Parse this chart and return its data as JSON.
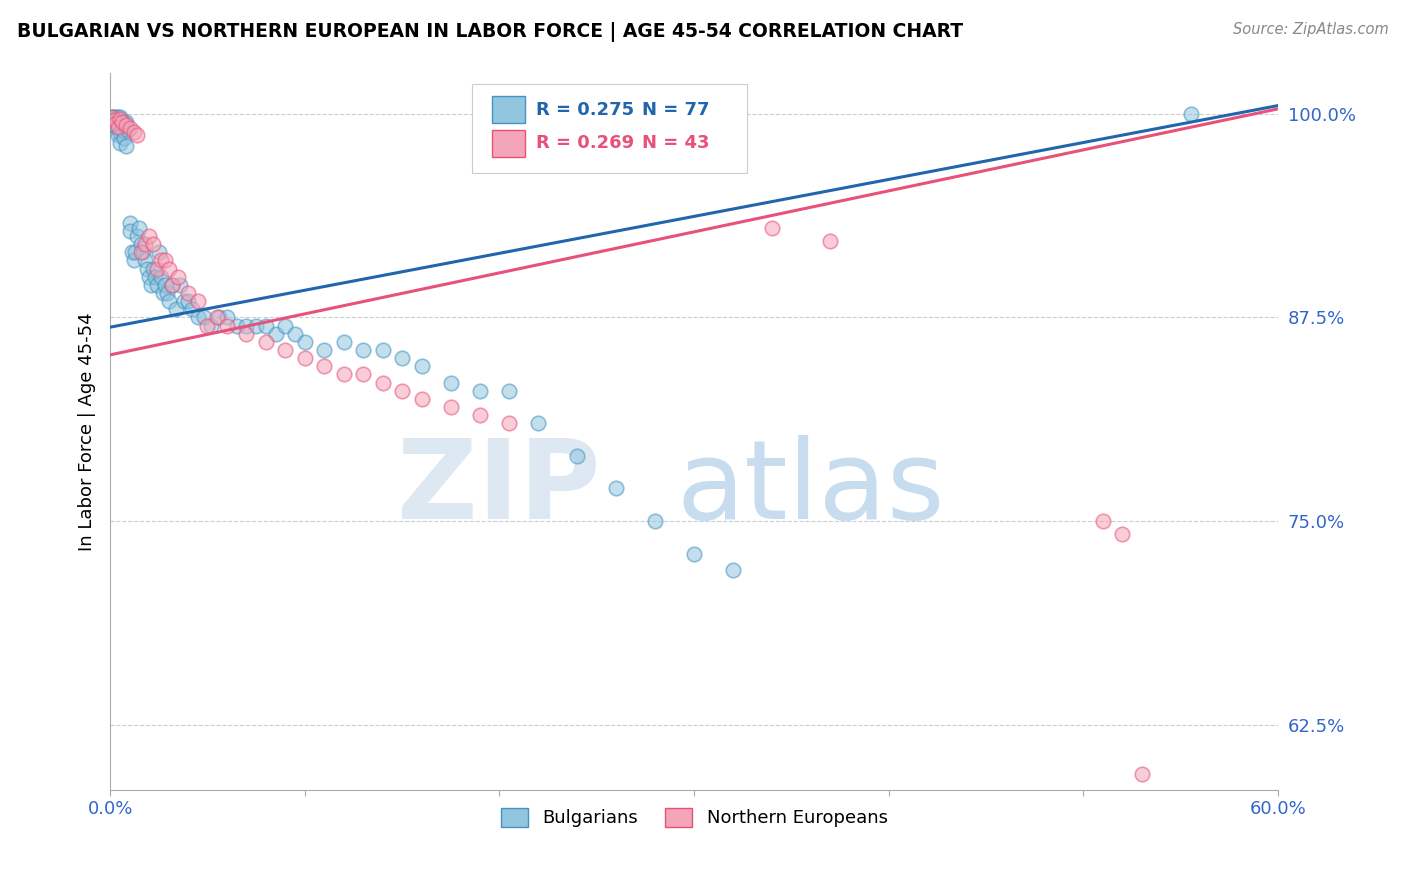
{
  "title": "BULGARIAN VS NORTHERN EUROPEAN IN LABOR FORCE | AGE 45-54 CORRELATION CHART",
  "source": "Source: ZipAtlas.com",
  "ylabel": "In Labor Force | Age 45-54",
  "xlim": [
    0.0,
    0.6
  ],
  "ylim": [
    0.585,
    1.025
  ],
  "yticks": [
    0.625,
    0.75,
    0.875,
    1.0
  ],
  "xticks": [
    0.0,
    0.1,
    0.2,
    0.3,
    0.4,
    0.5,
    0.6
  ],
  "ytick_labels": [
    "62.5%",
    "75.0%",
    "87.5%",
    "100.0%"
  ],
  "xtick_labels": [
    "0.0%",
    "",
    "",
    "",
    "",
    "",
    "60.0%"
  ],
  "blue_color": "#92c5de",
  "pink_color": "#f4a5b8",
  "blue_edge_color": "#4393c3",
  "pink_edge_color": "#e8527a",
  "blue_line_color": "#2166ac",
  "pink_line_color": "#e8527a",
  "legend_R_blue": "0.275",
  "legend_N_blue": "77",
  "legend_R_pink": "0.269",
  "legend_N_pink": "43",
  "blue_line_x0": 0.0,
  "blue_line_y0": 0.869,
  "blue_line_x1": 0.6,
  "blue_line_y1": 1.005,
  "pink_line_x0": 0.0,
  "pink_line_y0": 0.852,
  "pink_line_x1": 0.6,
  "pink_line_y1": 1.003,
  "blue_scatter_x": [
    0.001,
    0.002,
    0.002,
    0.003,
    0.003,
    0.003,
    0.004,
    0.004,
    0.004,
    0.005,
    0.005,
    0.005,
    0.005,
    0.006,
    0.006,
    0.007,
    0.007,
    0.008,
    0.008,
    0.009,
    0.01,
    0.01,
    0.011,
    0.012,
    0.013,
    0.014,
    0.015,
    0.016,
    0.017,
    0.018,
    0.019,
    0.02,
    0.021,
    0.022,
    0.023,
    0.024,
    0.025,
    0.026,
    0.027,
    0.028,
    0.029,
    0.03,
    0.032,
    0.034,
    0.036,
    0.038,
    0.04,
    0.042,
    0.045,
    0.048,
    0.052,
    0.056,
    0.06,
    0.065,
    0.07,
    0.075,
    0.08,
    0.085,
    0.09,
    0.095,
    0.1,
    0.11,
    0.12,
    0.13,
    0.14,
    0.15,
    0.16,
    0.175,
    0.19,
    0.205,
    0.22,
    0.24,
    0.26,
    0.28,
    0.3,
    0.32,
    0.555
  ],
  "blue_scatter_y": [
    0.998,
    0.998,
    0.993,
    0.998,
    0.992,
    0.996,
    0.998,
    0.994,
    0.987,
    0.998,
    0.994,
    0.988,
    0.982,
    0.995,
    0.99,
    0.995,
    0.985,
    0.995,
    0.98,
    0.99,
    0.933,
    0.928,
    0.915,
    0.91,
    0.915,
    0.925,
    0.93,
    0.92,
    0.915,
    0.91,
    0.905,
    0.9,
    0.895,
    0.905,
    0.9,
    0.895,
    0.915,
    0.9,
    0.89,
    0.895,
    0.89,
    0.885,
    0.895,
    0.88,
    0.895,
    0.885,
    0.885,
    0.88,
    0.875,
    0.875,
    0.87,
    0.875,
    0.875,
    0.87,
    0.87,
    0.87,
    0.87,
    0.865,
    0.87,
    0.865,
    0.86,
    0.855,
    0.86,
    0.855,
    0.855,
    0.85,
    0.845,
    0.835,
    0.83,
    0.83,
    0.81,
    0.79,
    0.77,
    0.75,
    0.73,
    0.72,
    1.0
  ],
  "pink_scatter_x": [
    0.001,
    0.002,
    0.003,
    0.004,
    0.005,
    0.006,
    0.008,
    0.01,
    0.012,
    0.014,
    0.016,
    0.018,
    0.02,
    0.022,
    0.024,
    0.026,
    0.028,
    0.03,
    0.032,
    0.035,
    0.04,
    0.045,
    0.05,
    0.055,
    0.06,
    0.07,
    0.08,
    0.09,
    0.1,
    0.11,
    0.12,
    0.13,
    0.14,
    0.15,
    0.16,
    0.175,
    0.19,
    0.205,
    0.34,
    0.37,
    0.51,
    0.52,
    0.53
  ],
  "pink_scatter_y": [
    0.998,
    0.996,
    0.994,
    0.992,
    0.997,
    0.995,
    0.993,
    0.991,
    0.989,
    0.987,
    0.915,
    0.92,
    0.925,
    0.92,
    0.905,
    0.91,
    0.91,
    0.905,
    0.895,
    0.9,
    0.89,
    0.885,
    0.87,
    0.875,
    0.87,
    0.865,
    0.86,
    0.855,
    0.85,
    0.845,
    0.84,
    0.84,
    0.835,
    0.83,
    0.825,
    0.82,
    0.815,
    0.81,
    0.93,
    0.922,
    0.75,
    0.742,
    0.595
  ]
}
